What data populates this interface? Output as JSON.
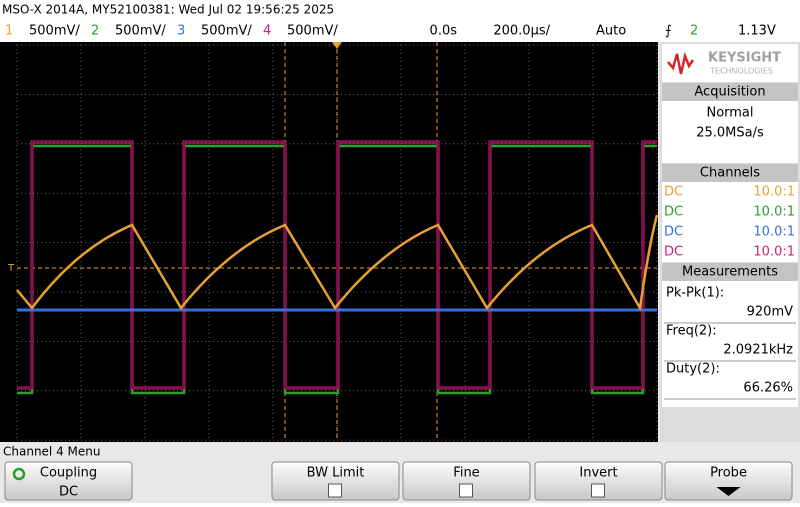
{
  "header": {
    "title": "MSO-X 2014A, MY52100381: Wed Jul 02 19:56:25 2025",
    "channels": [
      {
        "number": "1",
        "scale": "500mV/"
      },
      {
        "number": "2",
        "scale": "500mV/"
      },
      {
        "number": "3",
        "scale": "500mV/"
      },
      {
        "number": "4",
        "scale": "500mV/"
      }
    ],
    "time_offset": "0.0s",
    "time_scale": "200.0µs/",
    "trigger_mode": "Auto",
    "trigger_channel": "2",
    "trigger_level": "1.13V"
  },
  "screen": {
    "trigger_marker": "T"
  },
  "sidebar": {
    "brand": "KEYSIGHT",
    "brand_sub": "TECHNOLOGIES",
    "acquisition": {
      "title": "Acquisition",
      "mode": "Normal",
      "rate": "25.0MSa/s"
    },
    "channels": {
      "title": "Channels",
      "rows": [
        {
          "coupling": "DC",
          "probe": "10.0:1"
        },
        {
          "coupling": "DC",
          "probe": "10.0:1"
        },
        {
          "coupling": "DC",
          "probe": "10.0:1"
        },
        {
          "coupling": "DC",
          "probe": "10.0:1"
        }
      ]
    },
    "measurements": {
      "title": "Measurements",
      "items": [
        {
          "label": "Pk-Pk(1):",
          "value": "920mV"
        },
        {
          "label": "Freq(2):",
          "value": "2.0921kHz"
        },
        {
          "label": "Duty(2):",
          "value": "66.26%"
        }
      ]
    }
  },
  "menu": {
    "title": "Channel 4 Menu",
    "softkeys": [
      {
        "label": "Coupling",
        "value": "DC"
      },
      {
        "label": "BW Limit"
      },
      {
        "label": "Fine"
      },
      {
        "label": "Invert"
      },
      {
        "label": "Probe"
      }
    ]
  }
}
